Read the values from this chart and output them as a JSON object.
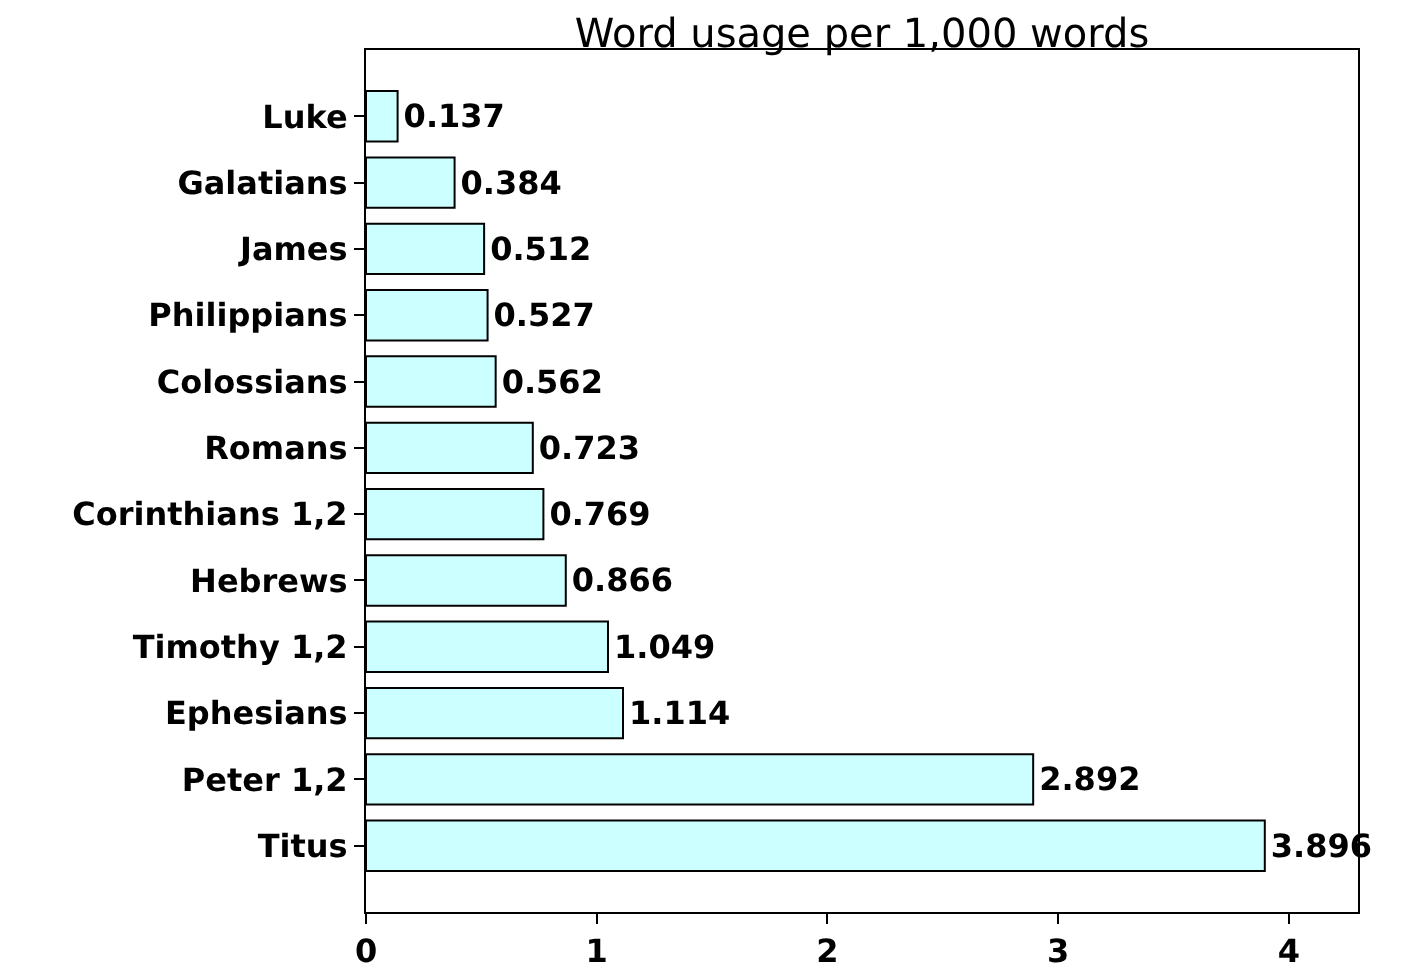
{
  "chart_data": {
    "type": "bar",
    "orientation": "horizontal",
    "title": "Word usage per 1,000 words",
    "categories": [
      "Luke",
      "Galatians",
      "James",
      "Philippians",
      "Colossians",
      "Romans",
      "Corinthians 1,2",
      "Hebrews",
      "Timothy 1,2",
      "Ephesians",
      "Peter 1,2",
      "Titus"
    ],
    "values": [
      0.137,
      0.384,
      0.512,
      0.527,
      0.562,
      0.723,
      0.769,
      0.866,
      1.049,
      1.114,
      2.892,
      3.896
    ],
    "color": "#ccffff",
    "xlim": [
      0,
      4.3
    ],
    "xticks": [
      0,
      1,
      2,
      3,
      4
    ],
    "data_labels": true
  }
}
